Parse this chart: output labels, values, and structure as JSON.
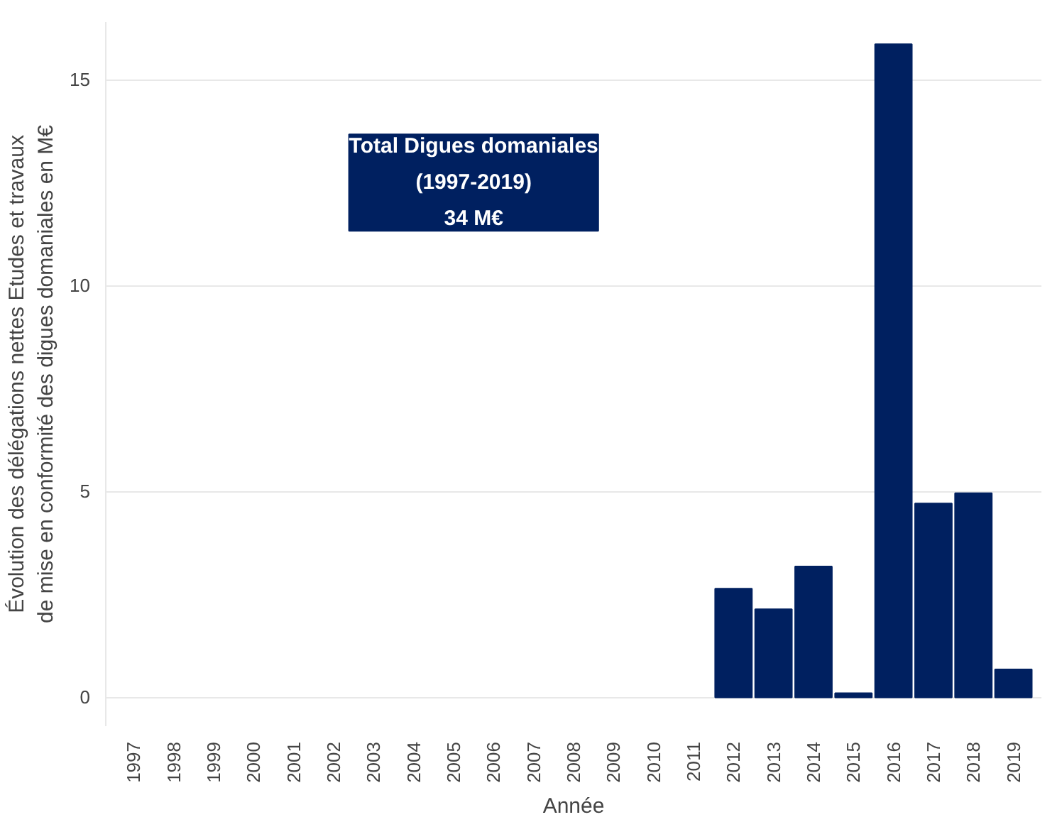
{
  "chart_data": {
    "type": "bar",
    "xlabel": "Année",
    "ylabel": "Évolution des délégations nettes Etudes et travaux\nde mise en conformité des digues domaniales en M€",
    "categories": [
      "1997",
      "1998",
      "1999",
      "2000",
      "2001",
      "2002",
      "2003",
      "2004",
      "2005",
      "2006",
      "2007",
      "2008",
      "2009",
      "2010",
      "2011",
      "2012",
      "2013",
      "2014",
      "2015",
      "2016",
      "2017",
      "2018",
      "2019"
    ],
    "values": [
      null,
      null,
      null,
      null,
      null,
      null,
      null,
      null,
      null,
      null,
      null,
      null,
      null,
      null,
      null,
      2.64,
      2.14,
      3.18,
      0.1,
      15.86,
      4.71,
      4.96,
      0.68
    ],
    "color": "#002060",
    "ylim": [
      -0.7,
      16.4
    ],
    "yticks": [
      0,
      5,
      10,
      15
    ],
    "grid": "y",
    "annotations": [
      "Total Digues domaniales\n(1997-2019)\n34 M€"
    ]
  }
}
